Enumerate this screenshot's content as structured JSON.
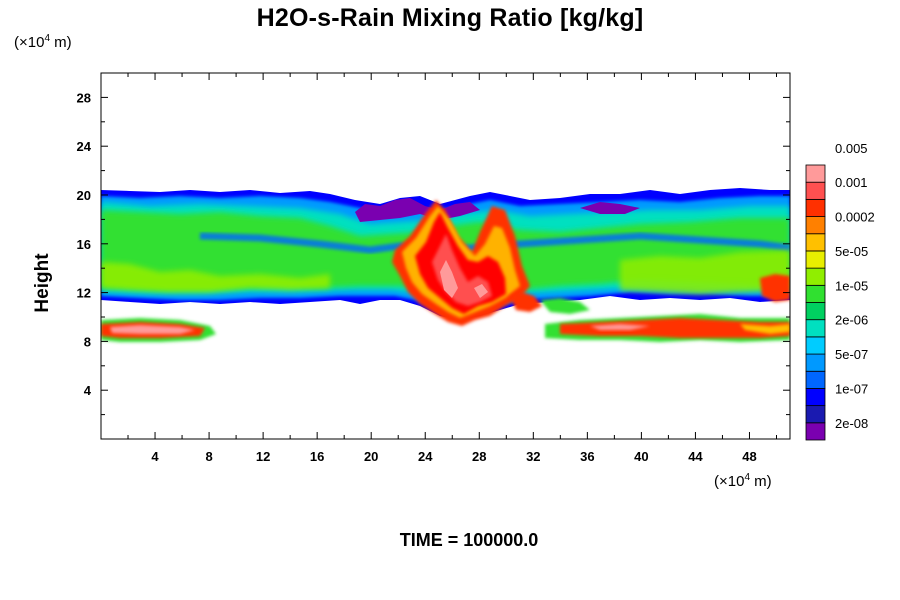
{
  "chart_data": {
    "type": "heatmap",
    "title": "H2O-s-Rain Mixing Ratio [kg/kg]",
    "ylabel": "Height",
    "x_unit_prefix": "(×10",
    "x_unit_exp": "4",
    "x_unit_suffix": " m)",
    "y_unit_prefix": "(×10",
    "y_unit_exp": "4",
    "y_unit_suffix": " m)",
    "xlim": [
      0,
      51
    ],
    "ylim": [
      0,
      30
    ],
    "x_ticks": [
      4,
      8,
      12,
      16,
      20,
      24,
      28,
      32,
      36,
      40,
      44,
      48
    ],
    "y_ticks": [
      4,
      8,
      12,
      16,
      20,
      24,
      28
    ],
    "colorbar": {
      "colors": [
        "#7a00b0",
        "#1a1ab0",
        "#0000ff",
        "#0066ff",
        "#0099ff",
        "#00ccff",
        "#00e0c0",
        "#00d060",
        "#30e030",
        "#90ee00",
        "#e8ee00",
        "#ffc000",
        "#ff8000",
        "#ff3000",
        "#ff5050",
        "#ff9a9a"
      ],
      "labels": [
        "2e-08",
        "1e-07",
        "5e-07",
        "2e-06",
        "1e-05",
        "5e-05",
        "0.0002",
        "0.001",
        "0.005"
      ]
    },
    "regions": [
      {
        "desc": "upper anvil layer",
        "x": [
          0,
          51
        ],
        "y": [
          11,
          20.2
        ],
        "level": 7
      },
      {
        "desc": "core",
        "x": [
          22.5,
          29.5
        ],
        "y": [
          9.5,
          19.5
        ],
        "level": 14
      },
      {
        "desc": "lower layer left",
        "x": [
          0,
          8.6
        ],
        "y": [
          8,
          10
        ],
        "level": 13
      },
      {
        "desc": "lower layer right",
        "x": [
          33,
          51
        ],
        "y": [
          8,
          10
        ],
        "level": 13
      }
    ]
  },
  "time_label": "TIME = 100000.0"
}
